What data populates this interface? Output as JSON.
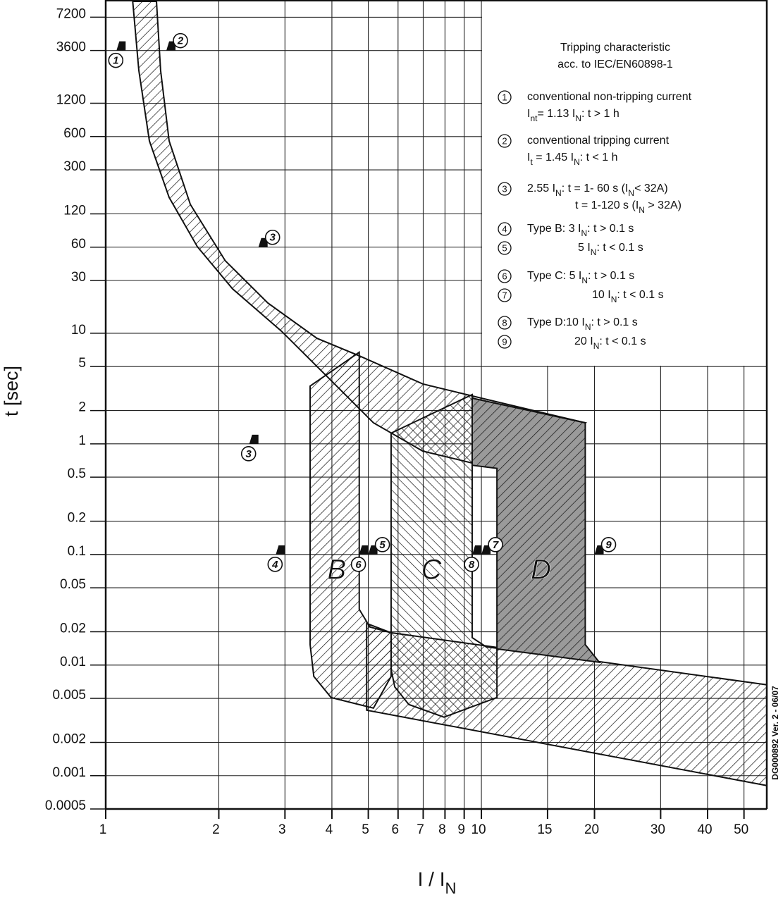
{
  "chart_data": {
    "type": "area",
    "xscale": "log",
    "yscale": "log",
    "grid": true,
    "xlim": [
      1,
      57.5
    ],
    "ylim": [
      0.0005,
      10000
    ],
    "xticks": [
      1,
      2,
      3,
      4,
      5,
      6,
      7,
      8,
      9,
      10,
      15,
      20,
      30,
      40,
      50
    ],
    "yticks": [
      7200,
      3600,
      1200,
      600,
      300,
      120,
      60,
      30,
      10,
      5,
      2,
      1,
      0.5,
      0.2,
      0.1,
      0.05,
      0.02,
      0.01,
      0.005,
      0.002,
      0.001,
      0.0005
    ],
    "x_label": [
      "I / I",
      "N"
    ],
    "y_label": "t [sec]",
    "note": "DG000892 Ver. 2 - 06/07",
    "legend_title": [
      "Tripping characteristic",
      "acc. to IEC/EN60898-1"
    ],
    "legend": [
      {
        "marker": "1",
        "lines": [
          [
            "conventional non-tripping current"
          ],
          [
            "I",
            "nt",
            "= 1.13 I",
            "N",
            ": t > 1 h"
          ]
        ]
      },
      {
        "marker": "2",
        "lines": [
          [
            "conventional tripping current"
          ],
          [
            "I",
            "t",
            " = 1.45 I",
            "N",
            ": t < 1 h"
          ]
        ]
      },
      {
        "marker": "3",
        "lines": [
          [
            "2.55 I",
            "N",
            ": t = 1- 60 s (I",
            "N",
            "< 32A)"
          ],
          [
            "t = 1-120 s (I",
            "N",
            " > 32A)"
          ]
        ]
      },
      {
        "marker": "4",
        "lines": [
          [
            "Type B: 3 I",
            "N",
            ": t > 0.1 s"
          ]
        ]
      },
      {
        "marker": "5",
        "lines": [
          [
            "5 I",
            "N",
            ": t < 0.1 s"
          ]
        ]
      },
      {
        "marker": "6",
        "lines": [
          [
            "Type C: 5 I",
            "N",
            ": t > 0.1 s"
          ]
        ]
      },
      {
        "marker": "7",
        "lines": [
          [
            "10 I",
            "N",
            ": t < 0.1 s"
          ]
        ]
      },
      {
        "marker": "8",
        "lines": [
          [
            "Type D:10 I",
            "N",
            ": t > 0.1 s"
          ]
        ]
      },
      {
        "marker": "9",
        "lines": [
          [
            "20 I",
            "N",
            ": t < 0.1 s"
          ]
        ]
      }
    ],
    "regions": [
      {
        "hatch": "fwd",
        "fill": "none",
        "x": [
          1.18,
          1.225,
          1.307,
          1.475,
          1.753,
          2.176,
          2.94,
          3.98,
          5.16,
          6.98,
          10,
          11.0,
          18.9,
          10,
          6.98,
          4.73,
          3.65,
          2.7,
          2.08,
          1.68,
          1.475,
          1.4,
          1.365
        ],
        "y": [
          10000,
          2377,
          548,
          169,
          60.7,
          25.2,
          10.4,
          3.74,
          1.55,
          0.86,
          0.64,
          0.6,
          1.55,
          2.59,
          3.48,
          6.25,
          9.0,
          18.8,
          45.3,
          146,
          548,
          2377,
          10000
        ]
      },
      {
        "hatch": "fwd",
        "fill": "none",
        "x": [
          4.95,
          5.75,
          57.5,
          57.5,
          4.95
        ],
        "y": [
          0.0238,
          0.0196,
          0.00663,
          0.000814,
          0.00391
        ]
      },
      {
        "hatch": "fwd",
        "fill": "none",
        "x": [
          3.5,
          4.73,
          4.73,
          5.05,
          5.75,
          5.75,
          5.16,
          3.98,
          3.58,
          3.5
        ],
        "y": [
          3.33,
          6.73,
          0.0319,
          0.0221,
          0.0196,
          0.0079,
          0.00408,
          0.00509,
          0.0079,
          0.0153
        ]
      },
      {
        "hatch": "back",
        "fill": "none",
        "x": [
          5.75,
          9.45,
          9.45,
          10.3,
          11.0,
          11.0,
          7.95,
          6.41,
          5.88,
          5.75
        ],
        "y": [
          1.25,
          2.79,
          0.0177,
          0.0146,
          0.0142,
          0.00509,
          0.00338,
          0.0044,
          0.00635,
          0.00916
        ]
      },
      {
        "hatch": "fwd",
        "fill": "#9a9a9a",
        "x": [
          9.45,
          18.9,
          18.9,
          20.6,
          11.0,
          11.0,
          9.45
        ],
        "y": [
          2.59,
          1.55,
          0.0153,
          0.0106,
          0.014,
          0.6,
          0.64
        ]
      }
    ],
    "annotations": [
      {
        "text": "B",
        "x": 4.12,
        "y": 0.07
      },
      {
        "text": "C",
        "x": 7.36,
        "y": 0.07
      },
      {
        "text": "D",
        "x": 14.4,
        "y": 0.07
      }
    ],
    "markers": [
      {
        "label": "1",
        "x": 1.13,
        "y": 3600,
        "side": "left"
      },
      {
        "label": "2",
        "x": 1.45,
        "y": 3600,
        "side": "right"
      },
      {
        "label": "3",
        "x": 2.55,
        "y": 60,
        "side": "right"
      },
      {
        "label": "3",
        "x": 2.55,
        "y": 1,
        "side": "left"
      },
      {
        "label": "4",
        "x": 3,
        "y": 0.1,
        "side": "left"
      },
      {
        "label": "5",
        "x": 5,
        "y": 0.1,
        "side": "right"
      },
      {
        "label": "6",
        "x": 5,
        "y": 0.1,
        "side": "left"
      },
      {
        "label": "7",
        "x": 10,
        "y": 0.1,
        "side": "right"
      },
      {
        "label": "8",
        "x": 10,
        "y": 0.1,
        "side": "left"
      },
      {
        "label": "9",
        "x": 20,
        "y": 0.1,
        "side": "right"
      }
    ]
  }
}
